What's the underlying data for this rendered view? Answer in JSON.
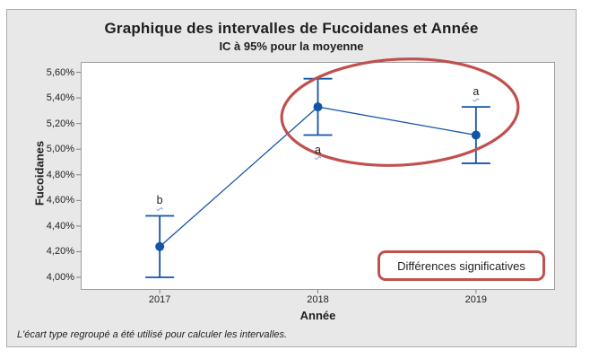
{
  "chart_data": {
    "type": "interval-plot",
    "title": "Graphique des intervalles de Fucoidanes et Année",
    "subtitle": "IC à 95% pour la moyenne",
    "xlabel": "Année",
    "ylabel": "Fucoidanes",
    "footnote": "L'écart type regroupé a été utilisé pour calculer les intervalles.",
    "categories": [
      "2017",
      "2018",
      "2019"
    ],
    "series": [
      {
        "name": "Fucoidanes",
        "confidence_level": "95%",
        "unit": "%",
        "means": [
          4.24,
          5.33,
          5.11
        ],
        "ci_low": [
          4.0,
          5.11,
          4.89
        ],
        "ci_high": [
          4.48,
          5.55,
          5.33
        ]
      }
    ],
    "grouping_letters": [
      {
        "category": "2017",
        "letter": "b",
        "placement": "above"
      },
      {
        "category": "2018",
        "letter": "a",
        "placement": "below"
      },
      {
        "category": "2019",
        "letter": "a",
        "placement": "above"
      }
    ],
    "yticks": [
      {
        "value": 4.0,
        "label": "4,00%"
      },
      {
        "value": 4.2,
        "label": "4,20%"
      },
      {
        "value": 4.4,
        "label": "4,40%"
      },
      {
        "value": 4.6,
        "label": "4,60%"
      },
      {
        "value": 4.8,
        "label": "4,80%"
      },
      {
        "value": 5.0,
        "label": "5,00%"
      },
      {
        "value": 5.2,
        "label": "5,20%"
      },
      {
        "value": 5.4,
        "label": "5,40%"
      },
      {
        "value": 5.6,
        "label": "5,60%"
      }
    ],
    "ylim": [
      3.902,
      5.681
    ],
    "grid": false,
    "legend": false
  },
  "annotations": {
    "ellipse_highlight": {
      "encircles": [
        "2018",
        "2019"
      ]
    },
    "callout_box_label": "Différences significatives"
  },
  "colors": {
    "series_blue": "#1254a6",
    "annotation_red": "#c0504d",
    "panel_background": "#e8e8e8",
    "plot_background": "#ffffff",
    "panel_border": "#ababab",
    "plot_border": "#9c9c9c",
    "axis_tick": "#7f7f7f",
    "text": "#1f1f1f",
    "letter_underline_blue": "#7a9bdb"
  }
}
